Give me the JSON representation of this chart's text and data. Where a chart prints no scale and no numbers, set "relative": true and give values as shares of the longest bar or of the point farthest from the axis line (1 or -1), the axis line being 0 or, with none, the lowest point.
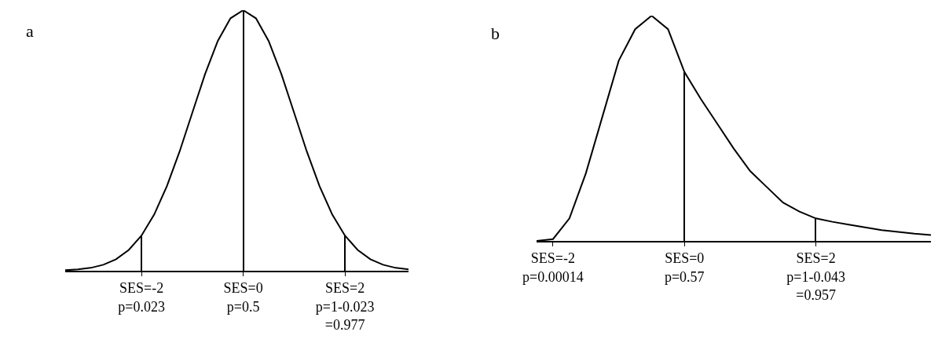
{
  "chart_data": [
    {
      "type": "line",
      "relative": true,
      "annotations": [
        "a"
      ],
      "categories": [
        null,
        null,
        null,
        null,
        null,
        null,
        "SES=-2\np=0.023",
        null,
        null,
        null,
        null,
        null,
        null,
        null,
        "SES=0\np=0.5",
        null,
        null,
        null,
        null,
        null,
        null,
        null,
        "SES=2\np=1-0.023\n=0.977",
        null,
        null,
        null,
        null,
        null
      ],
      "series": [
        {
          "color": "#000000",
          "values": [
            0.002,
            0.005,
            0.011,
            0.023,
            0.044,
            0.08,
            0.135,
            0.216,
            0.325,
            0.458,
            0.607,
            0.755,
            0.882,
            0.969,
            1,
            0.969,
            0.882,
            0.755,
            0.607,
            0.458,
            0.325,
            0.216,
            0.135,
            0.08,
            0.044,
            0.023,
            0.011,
            0.005
          ]
        },
        {
          "type": "bar",
          "color": "#000000",
          "values": [
            null,
            null,
            null,
            null,
            null,
            null,
            0.135,
            null,
            null,
            null,
            null,
            null,
            null,
            null,
            1,
            null,
            null,
            null,
            null,
            null,
            null,
            null,
            0.135,
            null,
            null,
            null,
            null,
            null
          ]
        }
      ]
    },
    {
      "type": "line",
      "relative": true,
      "annotations": [
        "b"
      ],
      "categories": [
        null,
        "SES=-2\np=0.00014",
        null,
        null,
        null,
        null,
        null,
        null,
        null,
        "SES=0\np=0.57",
        null,
        null,
        null,
        null,
        null,
        null,
        null,
        "SES=2\np=1-0.043\n=0.957",
        null,
        null,
        null,
        null,
        null,
        null,
        null
      ],
      "series": [
        {
          "color": "#000000",
          "values": [
            0,
            0.008,
            0.1,
            0.3,
            0.55,
            0.8,
            0.94,
            1,
            0.94,
            0.75,
            0.63,
            0.52,
            0.41,
            0.31,
            0.24,
            0.17,
            0.13,
            0.1,
            0.085,
            0.072,
            0.06,
            0.048,
            0.04,
            0.032,
            0.026
          ]
        },
        {
          "type": "bar",
          "color": "#000000",
          "values": [
            null,
            null,
            null,
            null,
            null,
            null,
            null,
            null,
            null,
            0.75,
            null,
            null,
            null,
            null,
            null,
            null,
            null,
            0.1,
            null,
            null,
            null,
            null,
            null,
            null,
            null
          ]
        }
      ]
    }
  ]
}
